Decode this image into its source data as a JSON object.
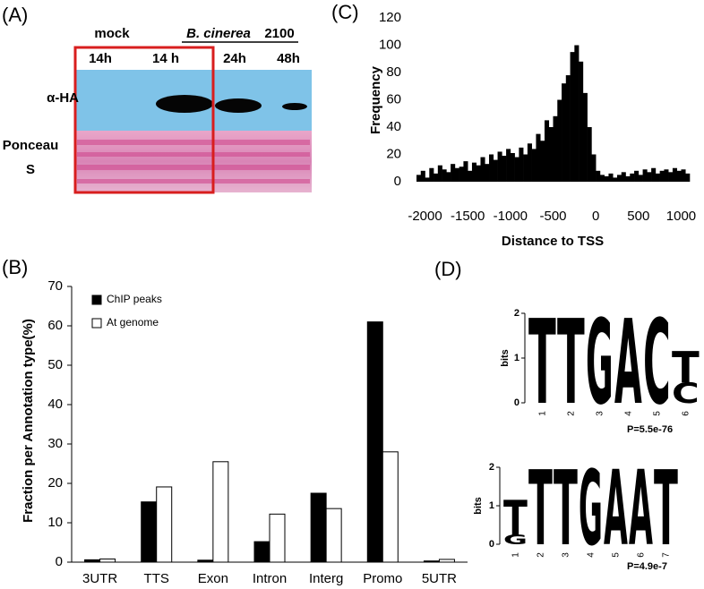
{
  "blot": {
    "panel": "(A)",
    "mock": "mock",
    "treatment": "B. cinerea",
    "strain": "2100",
    "lanes": [
      "14h",
      "14 h",
      "24h",
      "48h"
    ],
    "rows": [
      "α-HA",
      "Ponceau",
      "S"
    ]
  },
  "chart_data": [
    {
      "type": "histogram",
      "panel": "(C)",
      "x_label": "Distance to TSS",
      "y_label": "Frequency",
      "color": "#000000",
      "bins": [
        -2100,
        -2050,
        -2000,
        -1950,
        -1900,
        -1850,
        -1800,
        -1750,
        -1700,
        -1650,
        -1600,
        -1550,
        -1500,
        -1450,
        -1400,
        -1350,
        -1300,
        -1250,
        -1200,
        -1150,
        -1100,
        -1050,
        -1000,
        -950,
        -900,
        -850,
        -800,
        -750,
        -700,
        -650,
        -600,
        -550,
        -500,
        -450,
        -400,
        -350,
        -300,
        -250,
        -200,
        -150,
        -100,
        -50,
        0,
        50,
        100,
        150,
        200,
        250,
        300,
        350,
        400,
        450,
        500,
        550,
        600,
        650,
        700,
        750,
        800,
        850,
        900,
        950,
        1000,
        1050,
        1100
      ],
      "values": [
        5,
        8,
        3,
        10,
        6,
        12,
        9,
        7,
        13,
        10,
        11,
        15,
        8,
        14,
        12,
        18,
        13,
        20,
        16,
        22,
        19,
        24,
        21,
        18,
        25,
        20,
        28,
        24,
        35,
        30,
        45,
        40,
        48,
        60,
        72,
        78,
        95,
        100,
        88,
        65,
        40,
        20,
        8,
        5,
        4,
        6,
        3,
        5,
        7,
        4,
        6,
        8,
        5,
        9,
        7,
        10,
        6,
        8,
        9,
        7,
        10,
        8,
        9,
        6
      ],
      "xlim": [
        -2100,
        1100
      ],
      "xticks": [
        -2000,
        -1500,
        -1000,
        -500,
        0,
        500,
        1000
      ],
      "ylim": [
        0,
        120
      ],
      "yticks": [
        0,
        20,
        40,
        60,
        80,
        100,
        120
      ]
    },
    {
      "type": "bar",
      "panel": "(B)",
      "y_label": "Fraction per Annotation type(%)",
      "categories": [
        "3UTR",
        "TTS",
        "Exon",
        "Intron",
        "Interg",
        "Promo",
        "5UTR"
      ],
      "series": [
        {
          "name": "ChIP peaks",
          "color": "#000000",
          "values": [
            0.6,
            15.3,
            0.5,
            5.2,
            17.5,
            61,
            0.3
          ]
        },
        {
          "name": "At genome",
          "color": "#ffffff",
          "values": [
            0.8,
            19.1,
            25.5,
            12.2,
            13.6,
            28,
            0.7
          ]
        }
      ],
      "ylim": [
        0,
        70
      ],
      "yticks": [
        0,
        10,
        20,
        30,
        40,
        50,
        60,
        70
      ],
      "legend": "upper-left"
    }
  ],
  "motifs": {
    "panel": "(D)",
    "axis_label": "bits",
    "colors": {
      "A": "#e0201b",
      "C": "#1f3fd6",
      "G": "#f2a51e",
      "T": "#3a8a2b"
    },
    "logos": [
      {
        "ylim": [
          0,
          2
        ],
        "yticks": [
          0,
          1,
          2
        ],
        "positions": [
          1,
          2,
          3,
          4,
          5,
          6
        ],
        "columns": [
          [
            {
              "letter": "T",
              "bits": 1.9
            }
          ],
          [
            {
              "letter": "T",
              "bits": 1.9
            }
          ],
          [
            {
              "letter": "G",
              "bits": 1.9
            }
          ],
          [
            {
              "letter": "A",
              "bits": 1.9
            }
          ],
          [
            {
              "letter": "C",
              "bits": 1.9
            }
          ],
          [
            {
              "letter": "T",
              "bits": 0.7
            },
            {
              "letter": "C",
              "bits": 0.45
            }
          ]
        ],
        "p_value": "P=5.5e-76"
      },
      {
        "ylim": [
          0,
          2
        ],
        "yticks": [
          0,
          1,
          2
        ],
        "positions": [
          1,
          2,
          3,
          4,
          5,
          6,
          7
        ],
        "columns": [
          [
            {
              "letter": "T",
              "bits": 0.9
            },
            {
              "letter": "G",
              "bits": 0.25
            }
          ],
          [
            {
              "letter": "T",
              "bits": 1.95
            }
          ],
          [
            {
              "letter": "T",
              "bits": 1.95
            }
          ],
          [
            {
              "letter": "G",
              "bits": 1.95
            }
          ],
          [
            {
              "letter": "A",
              "bits": 1.95
            }
          ],
          [
            {
              "letter": "A",
              "bits": 1.95
            }
          ],
          [
            {
              "letter": "T",
              "bits": 1.95
            }
          ]
        ],
        "p_value": "P=4.9e-7"
      }
    ]
  }
}
